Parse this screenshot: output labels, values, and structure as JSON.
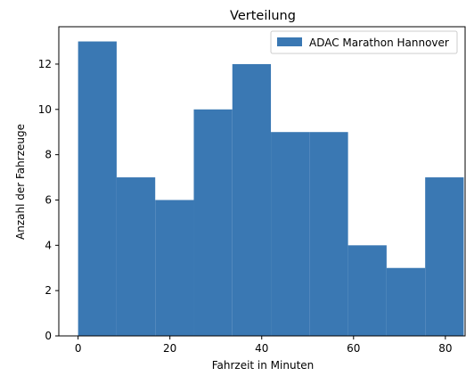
{
  "chart_data": {
    "type": "bar",
    "title": "Verteilung",
    "xlabel": "Fahrzeit in Minuten",
    "ylabel": "Anzahl der Fahrzeuge",
    "xlim": [
      -4.2,
      84.3
    ],
    "ylim": [
      0,
      13.65
    ],
    "xticks": [
      0,
      20,
      40,
      60,
      80
    ],
    "yticks": [
      0,
      2,
      4,
      6,
      8,
      10,
      12
    ],
    "grid": false,
    "legend_position": "top-right",
    "series": [
      {
        "name": "ADAC Marathon Hannover",
        "color": "#3a78b3",
        "bins": [
          {
            "x0": 0.0,
            "x1": 8.4,
            "value": 13
          },
          {
            "x0": 8.4,
            "x1": 16.8,
            "value": 7
          },
          {
            "x0": 16.8,
            "x1": 25.2,
            "value": 6
          },
          {
            "x0": 25.2,
            "x1": 33.6,
            "value": 10
          },
          {
            "x0": 33.6,
            "x1": 42.0,
            "value": 12
          },
          {
            "x0": 42.0,
            "x1": 50.4,
            "value": 9
          },
          {
            "x0": 50.4,
            "x1": 58.8,
            "value": 9
          },
          {
            "x0": 58.8,
            "x1": 67.2,
            "value": 4
          },
          {
            "x0": 67.2,
            "x1": 75.6,
            "value": 3
          },
          {
            "x0": 75.6,
            "x1": 84.0,
            "value": 7
          }
        ]
      }
    ]
  }
}
